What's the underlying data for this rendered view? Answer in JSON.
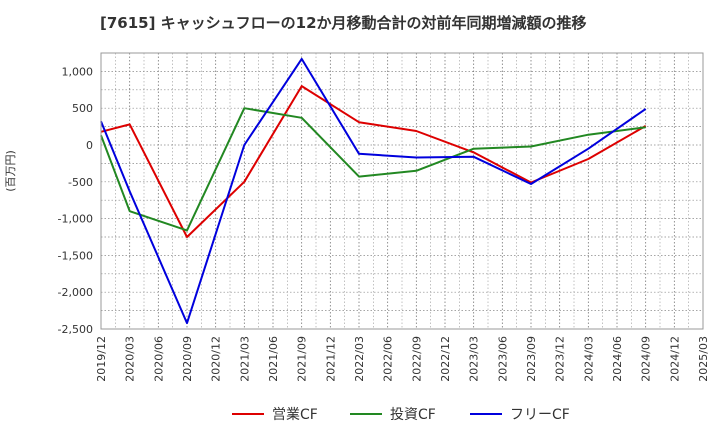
{
  "chart_data": {
    "type": "line",
    "title": "[7615]  キャッシュフローの12か月移動合計の対前年同期増減額の推移",
    "ylabel": "(百万円)",
    "xlabel": "",
    "ylim": [
      -2500,
      1250
    ],
    "yticks": [
      1000,
      500,
      0,
      -500,
      -1000,
      -1500,
      -2000,
      -2500
    ],
    "ytick_labels": [
      "1,000",
      "500",
      "0",
      "-500",
      "-1,000",
      "-1,500",
      "-2,000",
      "-2,500"
    ],
    "categories": [
      "2019/12",
      "2020/03",
      "2020/06",
      "2020/09",
      "2020/12",
      "2021/03",
      "2021/06",
      "2021/09",
      "2021/12",
      "2022/03",
      "2022/06",
      "2022/09",
      "2022/12",
      "2023/03",
      "2023/06",
      "2023/09",
      "2023/12",
      "2024/03",
      "2024/06",
      "2024/09",
      "2024/12",
      "2025/03"
    ],
    "legend_position": "bottom",
    "grid": true,
    "series": [
      {
        "name": "営業CF",
        "color": "#dd0000",
        "x": [
          "2019/12",
          "2020/03",
          "2020/09",
          "2021/03",
          "2021/09",
          "2022/03",
          "2022/09",
          "2023/03",
          "2023/09",
          "2024/03",
          "2024/09"
        ],
        "values": [
          180,
          280,
          -1250,
          -500,
          800,
          310,
          190,
          -100,
          -510,
          -190,
          260
        ]
      },
      {
        "name": "投資CF",
        "color": "#228822",
        "x": [
          "2019/12",
          "2020/03",
          "2020/09",
          "2021/03",
          "2021/09",
          "2022/03",
          "2022/09",
          "2023/03",
          "2023/09",
          "2024/03",
          "2024/09"
        ],
        "values": [
          130,
          -900,
          -1160,
          500,
          370,
          -430,
          -350,
          -50,
          -20,
          140,
          240
        ]
      },
      {
        "name": "フリーCF",
        "color": "#0000dd",
        "x": [
          "2019/12",
          "2020/03",
          "2020/09",
          "2021/03",
          "2021/09",
          "2022/03",
          "2022/09",
          "2023/03",
          "2023/09",
          "2024/03",
          "2024/09"
        ],
        "values": [
          320,
          -630,
          -2420,
          0,
          1170,
          -120,
          -170,
          -160,
          -530,
          -50,
          490
        ]
      }
    ]
  }
}
